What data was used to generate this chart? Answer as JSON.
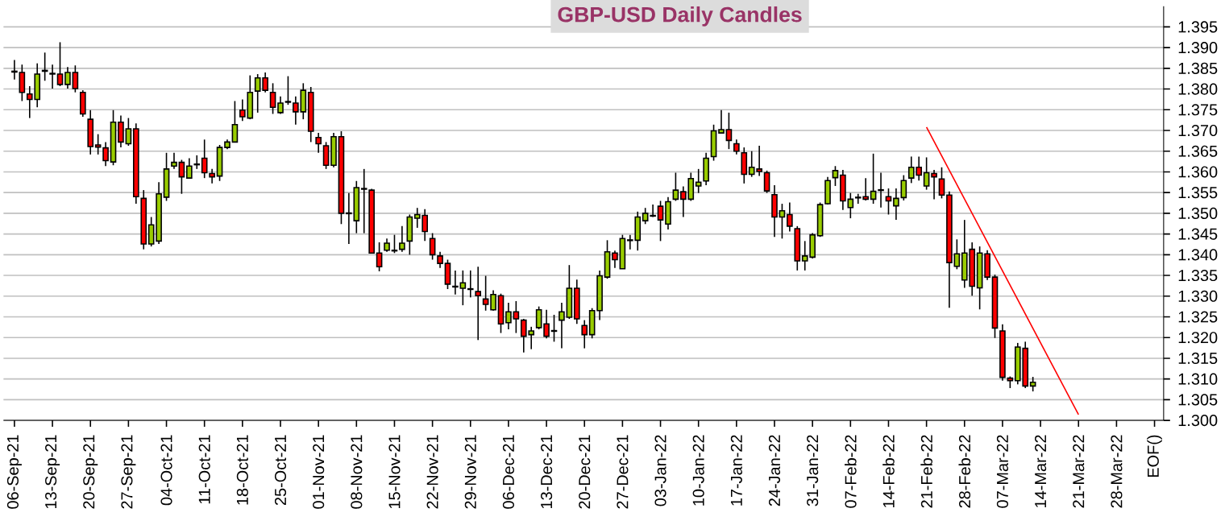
{
  "chart_data": {
    "type": "candlestick",
    "title": "GBP-USD Daily Candles",
    "categories": [
      "06-Sep-21",
      null,
      null,
      null,
      null,
      "13-Sep-21",
      null,
      null,
      null,
      null,
      "20-Sep-21",
      null,
      null,
      null,
      null,
      "27-Sep-21",
      null,
      null,
      null,
      null,
      "04-Oct-21",
      null,
      null,
      null,
      null,
      "11-Oct-21",
      null,
      null,
      null,
      null,
      "18-Oct-21",
      null,
      null,
      null,
      null,
      "25-Oct-21",
      null,
      null,
      null,
      null,
      "01-Nov-21",
      null,
      null,
      null,
      null,
      "08-Nov-21",
      null,
      null,
      null,
      null,
      "15-Nov-21",
      null,
      null,
      null,
      null,
      "22-Nov-21",
      null,
      null,
      null,
      null,
      "29-Nov-21",
      null,
      null,
      null,
      null,
      "06-Dec-21",
      null,
      null,
      null,
      null,
      "13-Dec-21",
      null,
      null,
      null,
      null,
      "20-Dec-21",
      null,
      null,
      null,
      null,
      "27-Dec-21",
      null,
      null,
      null,
      null,
      "03-Jan-22",
      null,
      null,
      null,
      null,
      "10-Jan-22",
      null,
      null,
      null,
      null,
      "17-Jan-22",
      null,
      null,
      null,
      null,
      "24-Jan-22",
      null,
      null,
      null,
      null,
      "31-Jan-22",
      null,
      null,
      null,
      null,
      "07-Feb-22",
      null,
      null,
      null,
      null,
      "14-Feb-22",
      null,
      null,
      null,
      null,
      "21-Feb-22",
      null,
      null,
      null,
      null,
      "28-Feb-22",
      null,
      null,
      null,
      null,
      "07-Mar-22",
      null,
      null,
      null,
      null,
      "14-Mar-22",
      null,
      null,
      null,
      null,
      "21-Mar-22",
      null,
      null,
      null,
      null,
      "28-Mar-22",
      null,
      null,
      null,
      null,
      "EOF()"
    ],
    "ohlc": [
      [
        1.3843,
        1.387,
        1.3823,
        1.3841
      ],
      [
        1.384,
        1.3859,
        1.3771,
        1.3792
      ],
      [
        1.3788,
        1.3807,
        1.373,
        1.3775
      ],
      [
        1.3775,
        1.3862,
        1.3756,
        1.3836
      ],
      [
        1.3843,
        1.3888,
        1.382,
        1.3845
      ],
      [
        1.3837,
        1.3859,
        1.3801,
        1.3837
      ],
      [
        1.3836,
        1.3913,
        1.3807,
        1.3811
      ],
      [
        1.3811,
        1.3853,
        1.3801,
        1.384
      ],
      [
        1.384,
        1.3857,
        1.3792,
        1.3801
      ],
      [
        1.3792,
        1.3797,
        1.3733,
        1.374
      ],
      [
        1.3727,
        1.3749,
        1.3642,
        1.3661
      ],
      [
        1.3665,
        1.3691,
        1.3642,
        1.366
      ],
      [
        1.3658,
        1.3672,
        1.3614,
        1.3627
      ],
      [
        1.3624,
        1.3749,
        1.3616,
        1.372
      ],
      [
        1.372,
        1.3736,
        1.3659,
        1.3672
      ],
      [
        1.3668,
        1.373,
        1.3663,
        1.3704
      ],
      [
        1.3704,
        1.3717,
        1.3523,
        1.354
      ],
      [
        1.3536,
        1.3556,
        1.3413,
        1.3426
      ],
      [
        1.3426,
        1.3491,
        1.342,
        1.3472
      ],
      [
        1.3433,
        1.3575,
        1.3426,
        1.3547
      ],
      [
        1.3539,
        1.3646,
        1.353,
        1.3607
      ],
      [
        1.3614,
        1.3646,
        1.3607,
        1.3623
      ],
      [
        1.3623,
        1.3629,
        1.3547,
        1.3588
      ],
      [
        1.3585,
        1.3633,
        1.3585,
        1.3614
      ],
      [
        1.3618,
        1.364,
        1.3607,
        1.3618
      ],
      [
        1.3633,
        1.3678,
        1.3585,
        1.3598
      ],
      [
        1.3596,
        1.3607,
        1.3572,
        1.3588
      ],
      [
        1.359,
        1.3665,
        1.3578,
        1.3659
      ],
      [
        1.3659,
        1.3678,
        1.3655,
        1.3672
      ],
      [
        1.3672,
        1.3771,
        1.3672,
        1.3714
      ],
      [
        1.3749,
        1.3775,
        1.3723,
        1.3733
      ],
      [
        1.373,
        1.3833,
        1.3727,
        1.3792
      ],
      [
        1.3795,
        1.3836,
        1.3743,
        1.3827
      ],
      [
        1.3827,
        1.384,
        1.3792,
        1.3797
      ],
      [
        1.3792,
        1.3814,
        1.374,
        1.3756
      ],
      [
        1.3743,
        1.3782,
        1.374,
        1.3766
      ],
      [
        1.3769,
        1.3831,
        1.3762,
        1.3769
      ],
      [
        1.3766,
        1.3782,
        1.3714,
        1.3745
      ],
      [
        1.3745,
        1.3814,
        1.3727,
        1.3797
      ],
      [
        1.3792,
        1.3805,
        1.3672,
        1.3698
      ],
      [
        1.3683,
        1.3694,
        1.3646,
        1.3668
      ],
      [
        1.3663,
        1.3672,
        1.3607,
        1.3616
      ],
      [
        1.3616,
        1.3694,
        1.3611,
        1.3685
      ],
      [
        1.3685,
        1.3698,
        1.3474,
        1.35
      ],
      [
        1.35,
        1.3549,
        1.3426,
        1.35
      ],
      [
        1.3482,
        1.3578,
        1.3452,
        1.3562
      ],
      [
        1.3559,
        1.3607,
        1.3452,
        1.3559
      ],
      [
        1.3556,
        1.3559,
        1.3404,
        1.3404
      ],
      [
        1.3404,
        1.343,
        1.336,
        1.3371
      ],
      [
        1.3411,
        1.3439,
        1.3407,
        1.3428
      ],
      [
        1.341,
        1.3448,
        1.3404,
        1.341
      ],
      [
        1.3413,
        1.3469,
        1.3407,
        1.3428
      ],
      [
        1.3433,
        1.3497,
        1.34,
        1.3491
      ],
      [
        1.3488,
        1.3513,
        1.3465,
        1.3497
      ],
      [
        1.3495,
        1.351,
        1.3433,
        1.3456
      ],
      [
        1.3439,
        1.3452,
        1.3388,
        1.34
      ],
      [
        1.3397,
        1.3407,
        1.3368,
        1.3379
      ],
      [
        1.3379,
        1.3388,
        1.3317,
        1.3329
      ],
      [
        1.3323,
        1.3362,
        1.3304,
        1.3323
      ],
      [
        1.3319,
        1.3362,
        1.3278,
        1.3332
      ],
      [
        1.3317,
        1.3362,
        1.3297,
        1.3317
      ],
      [
        1.3311,
        1.3371,
        1.3194,
        1.3301
      ],
      [
        1.3293,
        1.3349,
        1.3265,
        1.328
      ],
      [
        1.3267,
        1.3314,
        1.3265,
        1.3304
      ],
      [
        1.3301,
        1.3306,
        1.3211,
        1.3233
      ],
      [
        1.3236,
        1.3284,
        1.322,
        1.3262
      ],
      [
        1.3262,
        1.3288,
        1.3211,
        1.3245
      ],
      [
        1.3242,
        1.3245,
        1.3164,
        1.3203
      ],
      [
        1.3207,
        1.3226,
        1.3172,
        1.3216
      ],
      [
        1.3224,
        1.3275,
        1.322,
        1.3267
      ],
      [
        1.3233,
        1.3267,
        1.3198,
        1.3203
      ],
      [
        1.3216,
        1.3255,
        1.319,
        1.3216
      ],
      [
        1.3242,
        1.3284,
        1.3174,
        1.3262
      ],
      [
        1.3249,
        1.3375,
        1.3245,
        1.3319
      ],
      [
        1.3319,
        1.334,
        1.3233,
        1.3245
      ],
      [
        1.3229,
        1.3242,
        1.3174,
        1.3207
      ],
      [
        1.3207,
        1.3271,
        1.3198,
        1.3265
      ],
      [
        1.3265,
        1.3362,
        1.3242,
        1.3349
      ],
      [
        1.3346,
        1.3435,
        1.3342,
        1.3407
      ],
      [
        1.3404,
        1.341,
        1.3368,
        1.3388
      ],
      [
        1.3366,
        1.3448,
        1.3366,
        1.3439
      ],
      [
        1.3435,
        1.3448,
        1.3413,
        1.3435
      ],
      [
        1.3435,
        1.3504,
        1.341,
        1.3491
      ],
      [
        1.3482,
        1.3513,
        1.3474,
        1.35
      ],
      [
        1.3494,
        1.3521,
        1.3491,
        1.3494
      ],
      [
        1.3517,
        1.353,
        1.3433,
        1.3484
      ],
      [
        1.3474,
        1.3539,
        1.3461,
        1.3528
      ],
      [
        1.3534,
        1.3598,
        1.353,
        1.3556
      ],
      [
        1.3552,
        1.3565,
        1.3491,
        1.3534
      ],
      [
        1.3534,
        1.3598,
        1.353,
        1.3584
      ],
      [
        1.3566,
        1.3607,
        1.3549,
        1.3575
      ],
      [
        1.3578,
        1.3646,
        1.3568,
        1.3633
      ],
      [
        1.3637,
        1.3714,
        1.3627,
        1.3699
      ],
      [
        1.3694,
        1.3749,
        1.3694,
        1.3702
      ],
      [
        1.3702,
        1.3743,
        1.3655,
        1.3676
      ],
      [
        1.3668,
        1.3678,
        1.3642,
        1.365
      ],
      [
        1.3646,
        1.3659,
        1.3572,
        1.3594
      ],
      [
        1.3594,
        1.365,
        1.3588,
        1.3611
      ],
      [
        1.3607,
        1.3663,
        1.359,
        1.3601
      ],
      [
        1.3598,
        1.3603,
        1.3549,
        1.3554
      ],
      [
        1.3545,
        1.3568,
        1.3443,
        1.3491
      ],
      [
        1.3491,
        1.3523,
        1.3439,
        1.3506
      ],
      [
        1.3497,
        1.3526,
        1.3456,
        1.3469
      ],
      [
        1.3463,
        1.3469,
        1.3362,
        1.3385
      ],
      [
        1.3385,
        1.3433,
        1.3362,
        1.3397
      ],
      [
        1.3394,
        1.3452,
        1.3391,
        1.3448
      ],
      [
        1.3446,
        1.3526,
        1.3443,
        1.3521
      ],
      [
        1.3523,
        1.3588,
        1.3521,
        1.3579
      ],
      [
        1.3586,
        1.3614,
        1.3566,
        1.3603
      ],
      [
        1.3592,
        1.3605,
        1.3508,
        1.353
      ],
      [
        1.3514,
        1.3549,
        1.3488,
        1.3534
      ],
      [
        1.3538,
        1.3547,
        1.3523,
        1.3538
      ],
      [
        1.354,
        1.3585,
        1.3531,
        1.3534
      ],
      [
        1.3534,
        1.3644,
        1.3523,
        1.3553
      ],
      [
        1.3556,
        1.3598,
        1.3514,
        1.3556
      ],
      [
        1.354,
        1.356,
        1.3497,
        1.353
      ],
      [
        1.3518,
        1.356,
        1.3484,
        1.3536
      ],
      [
        1.3538,
        1.3592,
        1.3531,
        1.3579
      ],
      [
        1.3585,
        1.3637,
        1.3573,
        1.3611
      ],
      [
        1.3611,
        1.3637,
        1.3579,
        1.3592
      ],
      [
        1.3566,
        1.3635,
        1.3557,
        1.3598
      ],
      [
        1.3596,
        1.3605,
        1.3534,
        1.3588
      ],
      [
        1.3583,
        1.3611,
        1.3536,
        1.3544
      ],
      [
        1.3544,
        1.3553,
        1.3272,
        1.3381
      ],
      [
        1.3372,
        1.3437,
        1.3365,
        1.3402
      ],
      [
        1.3339,
        1.3484,
        1.332,
        1.3404
      ],
      [
        1.3413,
        1.343,
        1.3301,
        1.3324
      ],
      [
        1.332,
        1.342,
        1.3268,
        1.3404
      ],
      [
        1.3402,
        1.3411,
        1.3339,
        1.3346
      ],
      [
        1.3346,
        1.3352,
        1.3199,
        1.3223
      ],
      [
        1.3216,
        1.3232,
        1.3096,
        1.3104
      ],
      [
        1.3102,
        1.3106,
        1.3078,
        1.3096
      ],
      [
        1.3096,
        1.3187,
        1.3087,
        1.3177
      ],
      [
        1.3174,
        1.319,
        1.3078,
        1.3083
      ],
      [
        1.3083,
        1.3105,
        1.307,
        1.3092
      ],
      null,
      null,
      null,
      null,
      null,
      null,
      null,
      null,
      null,
      null,
      null,
      null,
      null,
      null,
      null,
      null
    ],
    "colors": [
      "#ff0000",
      "#ff0000",
      "#ff0000",
      "#99cc00",
      "#99cc00",
      "#000000",
      "#ff0000",
      "#99cc00",
      "#ff0000",
      "#ff0000",
      "#ff0000",
      "#ff0000",
      "#ff0000",
      "#99cc00",
      "#ff0000",
      "#99cc00",
      "#ff0000",
      "#ff0000",
      "#99cc00",
      "#99cc00",
      "#99cc00",
      "#99cc00",
      "#ff0000",
      "#99cc00",
      "#000000",
      "#ff0000",
      "#ff0000",
      "#99cc00",
      "#99cc00",
      "#99cc00",
      "#ff0000",
      "#99cc00",
      "#99cc00",
      "#ff0000",
      "#ff0000",
      "#99cc00",
      "#000000",
      "#ff0000",
      "#99cc00",
      "#ff0000",
      "#ff0000",
      "#ff0000",
      "#99cc00",
      "#ff0000",
      "#000000",
      "#99cc00",
      "#000000",
      "#ff0000",
      "#ff0000",
      "#99cc00",
      "#000000",
      "#99cc00",
      "#99cc00",
      "#99cc00",
      "#ff0000",
      "#ff0000",
      "#ff0000",
      "#ff0000",
      "#000000",
      "#99cc00",
      "#000000",
      "#ff0000",
      "#ff0000",
      "#99cc00",
      "#ff0000",
      "#99cc00",
      "#ff0000",
      "#ff0000",
      "#99cc00",
      "#99cc00",
      "#ff0000",
      "#000000",
      "#99cc00",
      "#99cc00",
      "#ff0000",
      "#ff0000",
      "#99cc00",
      "#99cc00",
      "#99cc00",
      "#ff0000",
      "#99cc00",
      "#000000",
      "#99cc00",
      "#99cc00",
      "#000000",
      "#ff0000",
      "#99cc00",
      "#99cc00",
      "#ff0000",
      "#99cc00",
      "#99cc00",
      "#99cc00",
      "#99cc00",
      "#99cc00",
      "#ff0000",
      "#ff0000",
      "#ff0000",
      "#99cc00",
      "#ff0000",
      "#ff0000",
      "#ff0000",
      "#99cc00",
      "#ff0000",
      "#ff0000",
      "#99cc00",
      "#99cc00",
      "#99cc00",
      "#99cc00",
      "#99cc00",
      "#ff0000",
      "#99cc00",
      "#000000",
      "#ff0000",
      "#99cc00",
      "#000000",
      "#ff0000",
      "#99cc00",
      "#99cc00",
      "#99cc00",
      "#ff0000",
      "#99cc00",
      "#ff0000",
      "#ff0000",
      "#ff0000",
      "#99cc00",
      "#99cc00",
      "#ff0000",
      "#99cc00",
      "#ff0000",
      "#ff0000",
      "#ff0000",
      "#ff0000",
      "#99cc00",
      "#ff0000",
      "#99cc00",
      null,
      null,
      null,
      null,
      null,
      null,
      null,
      null,
      null,
      null,
      null,
      null,
      null,
      null,
      null,
      null
    ],
    "series": [
      {
        "type": "line",
        "color": "#ff0000",
        "x": [
          "21-Feb-22",
          "21-Mar-22"
        ],
        "values": [
          1.3708,
          1.3014
        ]
      }
    ],
    "ylim": [
      1.3,
      1.4
    ],
    "yticks": [
      {
        "value": 1.3,
        "label": "1.300"
      },
      {
        "value": 1.305,
        "label": "1.305"
      },
      {
        "value": 1.31,
        "label": "1.310"
      },
      {
        "value": 1.315,
        "label": "1.315"
      },
      {
        "value": 1.32,
        "label": "1.320"
      },
      {
        "value": 1.325,
        "label": "1.325"
      },
      {
        "value": 1.33,
        "label": "1.330"
      },
      {
        "value": 1.335,
        "label": "1.335"
      },
      {
        "value": 1.34,
        "label": "1.340"
      },
      {
        "value": 1.345,
        "label": "1.345"
      },
      {
        "value": 1.35,
        "label": "1.350"
      },
      {
        "value": 1.355,
        "label": "1.355"
      },
      {
        "value": 1.36,
        "label": "1.360"
      },
      {
        "value": 1.365,
        "label": "1.365"
      },
      {
        "value": 1.37,
        "label": "1.370"
      },
      {
        "value": 1.375,
        "label": "1.375"
      },
      {
        "value": 1.38,
        "label": "1.380"
      },
      {
        "value": 1.385,
        "label": "1.385"
      },
      {
        "value": 1.39,
        "label": "1.390"
      },
      {
        "value": 1.395,
        "label": "1.395"
      }
    ],
    "grid": "y"
  }
}
